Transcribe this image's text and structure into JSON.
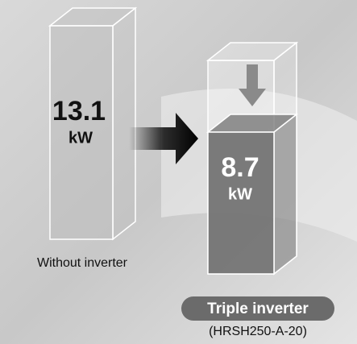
{
  "chart_data": {
    "type": "bar",
    "categories": [
      "Without inverter",
      "Triple inverter"
    ],
    "annotation": "(HRSH250-A-20)",
    "values": [
      13.1,
      8.7
    ],
    "unit": "kW",
    "colors": [
      "#bdbdbd",
      "#6e6e6e"
    ]
  }
}
